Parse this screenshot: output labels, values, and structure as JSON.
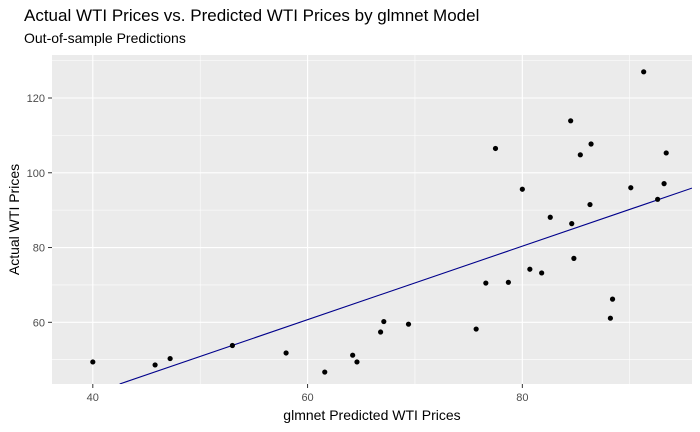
{
  "chart_data": {
    "type": "scatter",
    "title": "Actual WTI Prices vs. Predicted WTI Prices by glmnet Model",
    "subtitle": "Out-of-sample Predictions",
    "xlabel": "glmnet Predicted WTI Prices",
    "ylabel": "Actual WTI Prices",
    "xlim": [
      36.2,
      95.8
    ],
    "ylim": [
      43.5,
      131.5
    ],
    "x_ticks": [
      40,
      60,
      80
    ],
    "y_ticks": [
      60,
      80,
      100,
      120
    ],
    "x_tick_labels": [
      "40",
      "60",
      "80"
    ],
    "y_tick_labels": [
      "60",
      "80",
      "100",
      "120"
    ],
    "grid": true,
    "legend": "none",
    "series": [
      {
        "name": "Predictions",
        "type": "scatter",
        "points": [
          [
            40.0,
            49.4
          ],
          [
            45.8,
            48.6
          ],
          [
            47.2,
            50.3
          ],
          [
            53.0,
            53.8
          ],
          [
            58.0,
            51.8
          ],
          [
            61.6,
            46.7
          ],
          [
            64.2,
            51.2
          ],
          [
            64.6,
            49.4
          ],
          [
            66.8,
            57.4
          ],
          [
            67.1,
            60.2
          ],
          [
            69.4,
            59.5
          ],
          [
            75.7,
            58.2
          ],
          [
            76.6,
            70.5
          ],
          [
            77.5,
            106.5
          ],
          [
            78.7,
            70.7
          ],
          [
            80.0,
            95.6
          ],
          [
            80.7,
            74.2
          ],
          [
            81.8,
            73.2
          ],
          [
            82.6,
            88.1
          ],
          [
            84.5,
            113.9
          ],
          [
            84.6,
            86.4
          ],
          [
            84.8,
            77.1
          ],
          [
            85.4,
            104.8
          ],
          [
            86.3,
            91.5
          ],
          [
            86.4,
            107.7
          ],
          [
            88.2,
            61.1
          ],
          [
            88.4,
            66.2
          ],
          [
            90.1,
            96.0
          ],
          [
            91.3,
            127.0
          ],
          [
            92.6,
            92.9
          ],
          [
            93.2,
            97.1
          ],
          [
            93.4,
            105.3
          ]
        ]
      },
      {
        "name": "Fit line",
        "type": "line",
        "color": "#00008b",
        "points": [
          [
            42.5,
            43.5
          ],
          [
            95.8,
            95.9
          ]
        ]
      }
    ]
  }
}
